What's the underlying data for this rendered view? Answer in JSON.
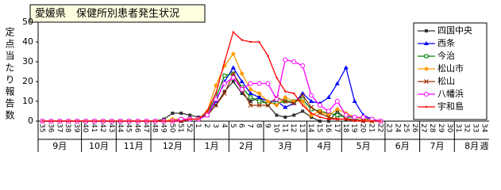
{
  "chart_data": {
    "type": "line",
    "title": "愛媛県　保健所別患者発生状況",
    "y_label": "定点当たり報告数",
    "categories": [
      "35",
      "36",
      "37",
      "38",
      "39",
      "40",
      "41",
      "42",
      "43",
      "44",
      "45",
      "46",
      "47",
      "48",
      "49",
      "50",
      "51",
      "52",
      "1",
      "2",
      "3",
      "4",
      "5",
      "6",
      "7",
      "8",
      "9",
      "10",
      "11",
      "12",
      "13",
      "14",
      "15",
      "16",
      "17",
      "18",
      "19",
      "20",
      "21",
      "22",
      "23",
      "24",
      "25",
      "26",
      "27",
      "28",
      "29",
      "30",
      "31",
      "32",
      "33",
      "34"
    ],
    "months": [
      "9月",
      "10月",
      "11月",
      "12月",
      "1月",
      "2月",
      "3月",
      "4月",
      "5月",
      "6月",
      "7月",
      "8月",
      "週"
    ],
    "ylim": [
      0,
      50
    ],
    "yticks": [
      0,
      10,
      20,
      30,
      40,
      50
    ],
    "grid": false,
    "series": [
      {
        "name": "四国中央",
        "color": "#333333",
        "marker": "square",
        "values": [
          0,
          0,
          0,
          0,
          0,
          0,
          0,
          0,
          0,
          0,
          0,
          0,
          0,
          0,
          1,
          4,
          4,
          3,
          2,
          3,
          8,
          15,
          20,
          14,
          10,
          12,
          8,
          3,
          2,
          3,
          5,
          2,
          0,
          0,
          5,
          1,
          1,
          0,
          0,
          0,
          null,
          null,
          null,
          null,
          null,
          null,
          null,
          null,
          null,
          null,
          null,
          null
        ]
      },
      {
        "name": "西条",
        "color": "#0000ff",
        "marker": "triangle",
        "values": [
          0,
          0,
          0,
          0,
          0,
          0,
          0,
          0,
          0,
          0,
          0,
          0,
          0,
          0,
          0,
          0,
          0,
          1,
          1,
          3,
          10,
          20,
          27,
          20,
          14,
          12,
          10,
          10,
          7,
          9,
          14,
          10,
          9,
          12,
          19,
          27,
          10,
          3,
          1,
          0,
          null,
          null,
          null,
          null,
          null,
          null,
          null,
          null,
          null,
          null,
          null,
          null
        ]
      },
      {
        "name": "今治",
        "color": "#008000",
        "marker": "square-open",
        "values": [
          0,
          0,
          0,
          0,
          0,
          0,
          0,
          0,
          0,
          0,
          0,
          0,
          0,
          0,
          0,
          0,
          1,
          1,
          1,
          4,
          12,
          23,
          24,
          17,
          12,
          10,
          9,
          9,
          10,
          10,
          11,
          6,
          5,
          4,
          3,
          2,
          2,
          1,
          1,
          0,
          null,
          null,
          null,
          null,
          null,
          null,
          null,
          null,
          null,
          null,
          null,
          null
        ]
      },
      {
        "name": "松山市",
        "color": "#ff9900",
        "marker": "diamond",
        "values": [
          0,
          0,
          0,
          0,
          0,
          0,
          0,
          0,
          0,
          0,
          0,
          0,
          0,
          0,
          0,
          1,
          1,
          1,
          1,
          5,
          18,
          28,
          34,
          24,
          16,
          14,
          10,
          8,
          12,
          10,
          10,
          3,
          5,
          3,
          6,
          4,
          2,
          1,
          0,
          0,
          null,
          null,
          null,
          null,
          null,
          null,
          null,
          null,
          null,
          null,
          null,
          null
        ]
      },
      {
        "name": "松山",
        "color": "#993300",
        "marker": "x",
        "values": [
          0,
          0,
          0,
          0,
          0,
          0,
          0,
          0,
          0,
          0,
          0,
          0,
          0,
          0,
          0,
          0,
          0,
          1,
          1,
          3,
          8,
          14,
          24,
          16,
          8,
          8,
          8,
          12,
          10,
          9,
          13,
          7,
          4,
          2,
          1,
          1,
          1,
          0,
          0,
          0,
          null,
          null,
          null,
          null,
          null,
          null,
          null,
          null,
          null,
          null,
          null,
          null
        ]
      },
      {
        "name": "八幡浜",
        "color": "#ff00ff",
        "marker": "circle-open",
        "values": [
          0,
          0,
          0,
          0,
          0,
          0,
          0,
          0,
          0,
          0,
          0,
          0,
          0,
          0,
          0,
          0,
          1,
          1,
          1,
          3,
          11,
          19,
          22,
          16,
          19,
          19,
          19,
          11,
          31,
          30,
          28,
          13,
          8,
          5,
          10,
          3,
          2,
          2,
          1,
          0,
          null,
          null,
          null,
          null,
          null,
          null,
          null,
          null,
          null,
          null,
          null,
          null
        ]
      },
      {
        "name": "宇和島",
        "color": "#ff0000",
        "marker": "dot",
        "values": [
          0,
          0,
          0,
          0,
          0,
          0,
          0,
          0,
          0,
          0,
          0,
          0,
          0,
          0,
          0,
          0,
          0,
          1,
          1,
          5,
          14,
          30,
          45,
          41,
          40,
          40,
          33,
          22,
          15,
          14,
          8,
          4,
          2,
          1,
          1,
          1,
          0,
          0,
          0,
          0,
          null,
          null,
          null,
          null,
          null,
          null,
          null,
          null,
          null,
          null,
          null,
          null
        ]
      }
    ]
  }
}
